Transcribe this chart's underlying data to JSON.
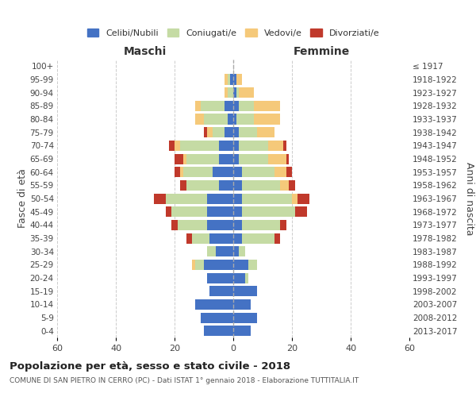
{
  "age_groups": [
    "0-4",
    "5-9",
    "10-14",
    "15-19",
    "20-24",
    "25-29",
    "30-34",
    "35-39",
    "40-44",
    "45-49",
    "50-54",
    "55-59",
    "60-64",
    "65-69",
    "70-74",
    "75-79",
    "80-84",
    "85-89",
    "90-94",
    "95-99",
    "100+"
  ],
  "birth_years": [
    "2013-2017",
    "2008-2012",
    "2003-2007",
    "1998-2002",
    "1993-1997",
    "1988-1992",
    "1983-1987",
    "1978-1982",
    "1973-1977",
    "1968-1972",
    "1963-1967",
    "1958-1962",
    "1953-1957",
    "1948-1952",
    "1943-1947",
    "1938-1942",
    "1933-1937",
    "1928-1932",
    "1923-1927",
    "1918-1922",
    "≤ 1917"
  ],
  "males": {
    "celibi": [
      10,
      11,
      13,
      8,
      9,
      10,
      6,
      8,
      9,
      9,
      9,
      5,
      7,
      5,
      5,
      3,
      2,
      3,
      0,
      1,
      0
    ],
    "coniugati": [
      0,
      0,
      0,
      0,
      0,
      3,
      3,
      6,
      10,
      12,
      14,
      11,
      10,
      11,
      13,
      4,
      8,
      8,
      2,
      1,
      0
    ],
    "vedovi": [
      0,
      0,
      0,
      0,
      0,
      1,
      0,
      0,
      0,
      0,
      0,
      0,
      1,
      1,
      2,
      2,
      3,
      2,
      1,
      1,
      0
    ],
    "divorziati": [
      0,
      0,
      0,
      0,
      0,
      0,
      0,
      2,
      2,
      2,
      4,
      2,
      2,
      3,
      2,
      1,
      0,
      0,
      0,
      0,
      0
    ]
  },
  "females": {
    "nubili": [
      6,
      8,
      6,
      8,
      4,
      5,
      2,
      3,
      3,
      3,
      3,
      3,
      3,
      2,
      2,
      2,
      1,
      2,
      1,
      1,
      0
    ],
    "coniugate": [
      0,
      0,
      0,
      0,
      1,
      3,
      2,
      11,
      13,
      18,
      17,
      13,
      11,
      10,
      10,
      6,
      6,
      5,
      1,
      0,
      0
    ],
    "vedove": [
      0,
      0,
      0,
      0,
      0,
      0,
      0,
      0,
      0,
      0,
      2,
      3,
      4,
      6,
      5,
      6,
      9,
      9,
      5,
      2,
      0
    ],
    "divorziate": [
      0,
      0,
      0,
      0,
      0,
      0,
      0,
      2,
      2,
      4,
      4,
      2,
      2,
      1,
      1,
      0,
      0,
      0,
      0,
      0,
      0
    ]
  },
  "color_celibi": "#4472c4",
  "color_coniugati": "#c5dba4",
  "color_vedovi": "#f5c97a",
  "color_divorziati": "#c0392b",
  "title_main": "Popolazione per età, sesso e stato civile - 2018",
  "title_sub": "COMUNE DI SAN PIETRO IN CERRO (PC) - Dati ISTAT 1° gennaio 2018 - Elaborazione TUTTITALIA.IT",
  "xlabel_left": "Maschi",
  "xlabel_right": "Femmine",
  "ylabel_left": "Fasce di età",
  "ylabel_right": "Anni di nascita",
  "xlim": 60,
  "legend_labels": [
    "Celibi/Nubili",
    "Coniugati/e",
    "Vedovi/e",
    "Divorziati/e"
  ],
  "background_color": "#ffffff",
  "grid_color": "#cccccc"
}
